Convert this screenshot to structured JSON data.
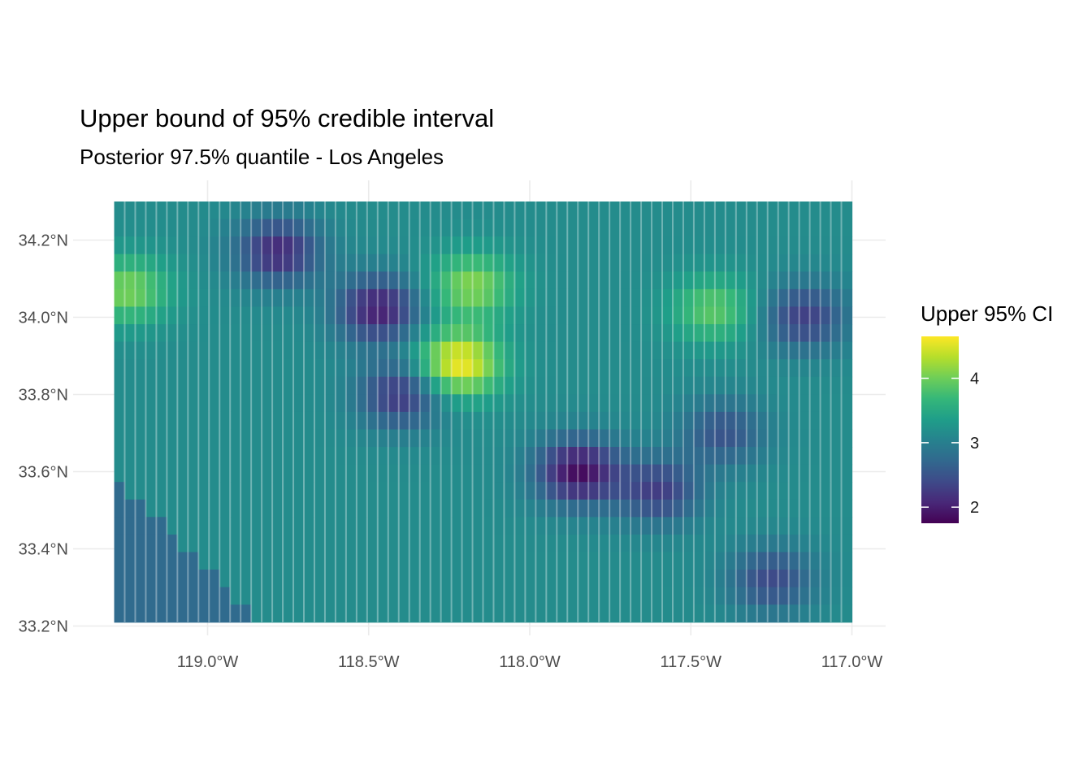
{
  "chart_data": {
    "type": "heatmap",
    "title": "Upper bound of 95% credible interval",
    "subtitle": "Posterior 97.5% quantile - Los Angeles",
    "xlabel": "",
    "ylabel": "",
    "x_ticks": [
      {
        "value": -119.0,
        "label": "119.0°W"
      },
      {
        "value": -118.5,
        "label": "118.5°W"
      },
      {
        "value": -118.0,
        "label": "118.0°W"
      },
      {
        "value": -117.5,
        "label": "117.5°W"
      },
      {
        "value": -117.0,
        "label": "117.0°W"
      }
    ],
    "y_ticks": [
      {
        "value": 33.2,
        "label": "33.2°N"
      },
      {
        "value": 33.4,
        "label": "33.4°N"
      },
      {
        "value": 33.6,
        "label": "33.6°N"
      },
      {
        "value": 33.8,
        "label": "33.8°N"
      },
      {
        "value": 34.0,
        "label": "34.0°N"
      },
      {
        "value": 34.2,
        "label": "34.2°N"
      }
    ],
    "xlim": [
      -119.29,
      -117.0
    ],
    "ylim": [
      33.2,
      34.3
    ],
    "grid": true,
    "grid_extent": {
      "lon": [
        -119.29,
        -117.0
      ],
      "lat": [
        33.21,
        34.3
      ]
    },
    "grid_resolution": {
      "n_lon": 70,
      "n_lat": 24
    },
    "coast_boundary": {
      "lon": [
        -119.29,
        -118.84
      ],
      "lat": [
        33.59,
        33.21
      ]
    },
    "offshore_value": 2.75,
    "base_value": 3.15,
    "hotspots": [
      {
        "lon": -118.22,
        "lat": 33.88,
        "value": 4.65
      },
      {
        "lon": -119.25,
        "lat": 34.07,
        "value": 4.05
      },
      {
        "lon": -118.18,
        "lat": 34.08,
        "value": 4.1
      },
      {
        "lon": -117.43,
        "lat": 34.02,
        "value": 3.9
      },
      {
        "lon": -117.85,
        "lat": 33.6,
        "value": 1.85
      },
      {
        "lon": -118.47,
        "lat": 34.02,
        "value": 2.0
      },
      {
        "lon": -118.78,
        "lat": 34.17,
        "value": 2.1
      },
      {
        "lon": -118.4,
        "lat": 33.8,
        "value": 2.2
      },
      {
        "lon": -117.6,
        "lat": 33.55,
        "value": 2.3
      },
      {
        "lon": -117.15,
        "lat": 34.0,
        "value": 2.3
      },
      {
        "lon": -117.25,
        "lat": 33.32,
        "value": 2.4
      },
      {
        "lon": -117.4,
        "lat": 33.7,
        "value": 2.5
      }
    ],
    "colorscale": "viridis",
    "color_range": [
      1.75,
      4.65
    ],
    "legend": {
      "title": "Upper 95% CI",
      "position": "right",
      "ticks": [
        {
          "value": 2,
          "label": "2"
        },
        {
          "value": 3,
          "label": "3"
        },
        {
          "value": 4,
          "label": "4"
        }
      ]
    }
  }
}
